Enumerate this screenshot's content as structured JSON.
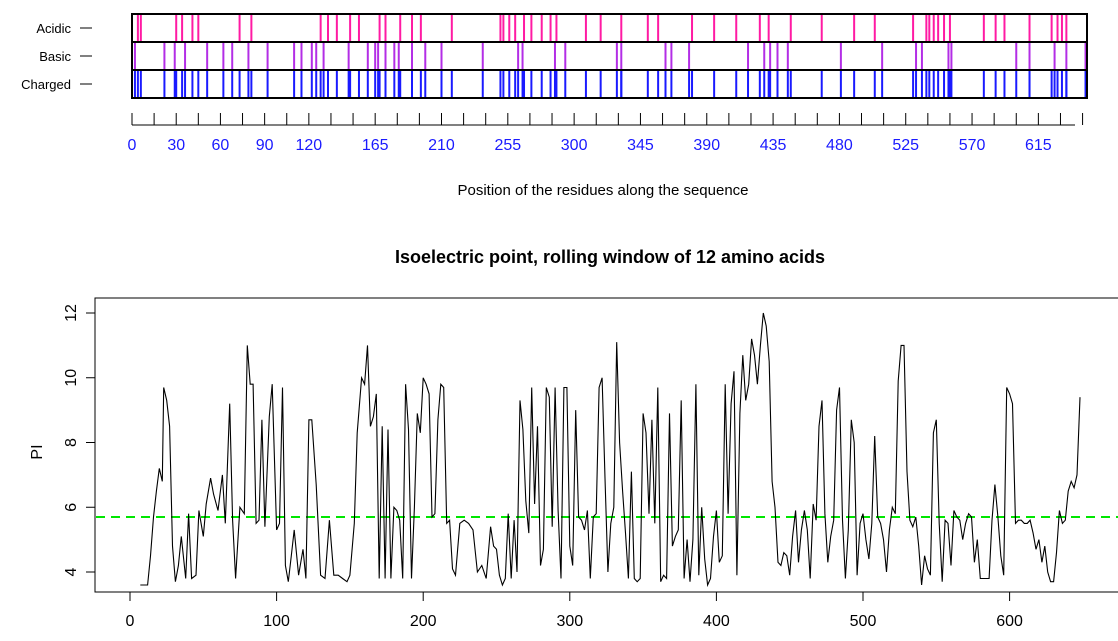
{
  "chart_data": [
    {
      "type": "barcode",
      "rows": [
        "Acidic",
        "Basic",
        "Charged"
      ],
      "xlabel": "Position of the residues along the sequence",
      "xticks": [
        0,
        30,
        60,
        90,
        120,
        165,
        210,
        255,
        300,
        345,
        390,
        435,
        480,
        525,
        570,
        615
      ],
      "xlim": [
        0,
        648
      ],
      "row_colors": {
        "Acidic": "#ff1aa3",
        "Basic": "#b32ee6",
        "Charged": "#1a1aff"
      },
      "acidic_positions": [
        4,
        6,
        30,
        34,
        41,
        45,
        73,
        81,
        128,
        133,
        139,
        148,
        154,
        168,
        172,
        182,
        190,
        196,
        217,
        250,
        252,
        256,
        260,
        266,
        271,
        278,
        284,
        288,
        308,
        318,
        332,
        350,
        357,
        380,
        395,
        410,
        426,
        432,
        447,
        468,
        490,
        504,
        530,
        539,
        541,
        544,
        547,
        551,
        555,
        578,
        586,
        592,
        609,
        624,
        628,
        631,
        634
      ],
      "basic_positions": [
        2,
        22,
        29,
        36,
        51,
        62,
        68,
        79,
        92,
        110,
        115,
        122,
        125,
        130,
        147,
        160,
        165,
        167,
        172,
        178,
        181,
        190,
        199,
        210,
        238,
        262,
        265,
        287,
        294,
        329,
        332,
        362,
        366,
        378,
        418,
        429,
        433,
        438,
        445,
        481,
        509,
        532,
        536,
        554,
        556,
        600,
        609,
        626,
        634,
        647
      ]
    },
    {
      "type": "line",
      "title": "Isoelectric point, rolling window of 12 amino acids",
      "xlabel": "",
      "ylabel": "PI",
      "xlim": [
        0,
        670
      ],
      "ylim": [
        3.5,
        12.2
      ],
      "xticks": [
        0,
        100,
        200,
        300,
        400,
        500,
        600
      ],
      "yticks": [
        4,
        6,
        8,
        10,
        12
      ],
      "reference_line": {
        "y": 5.7,
        "color": "#00e600",
        "style": "dashed"
      },
      "series": [
        {
          "color": "#000000",
          "x": [
            7,
            10,
            12,
            14,
            16,
            18,
            20,
            22,
            23,
            25,
            27,
            29,
            31,
            33,
            35,
            38,
            40,
            42,
            45,
            47,
            50,
            52,
            55,
            57,
            60,
            63,
            65,
            68,
            70,
            72,
            75,
            78,
            80,
            82,
            84,
            86,
            88,
            90,
            92,
            95,
            97,
            100,
            102,
            104,
            106,
            108,
            110,
            112,
            115,
            118,
            120,
            122,
            124,
            127,
            130,
            133,
            136,
            139,
            142,
            145,
            148,
            150,
            153,
            155,
            158,
            160,
            162,
            164,
            166,
            168,
            170,
            172,
            174,
            176,
            178,
            180,
            182,
            184,
            186,
            188,
            190,
            192,
            194,
            196,
            198,
            200,
            202,
            204,
            206,
            208,
            210,
            212,
            214,
            216,
            218,
            220,
            222,
            225,
            228,
            231,
            234,
            237,
            240,
            243,
            246,
            248,
            250,
            252,
            254,
            256,
            258,
            260,
            262,
            264,
            266,
            268,
            270,
            272,
            274,
            276,
            278,
            280,
            282,
            284,
            286,
            288,
            290,
            292,
            294,
            296,
            298,
            300,
            302,
            304,
            306,
            308,
            310,
            312,
            314,
            316,
            318,
            320,
            322,
            324,
            326,
            328,
            330,
            332,
            334,
            336,
            338,
            340,
            342,
            344,
            346,
            348,
            350,
            352,
            354,
            356,
            358,
            360,
            362,
            364,
            366,
            368,
            370,
            372,
            374,
            376,
            378,
            380,
            382,
            384,
            386,
            388,
            390,
            392,
            394,
            396,
            398,
            400,
            402,
            404,
            406,
            408,
            410,
            412,
            414,
            416,
            418,
            420,
            422,
            424,
            426,
            428,
            430,
            432,
            434,
            436,
            438,
            440,
            442,
            444,
            446,
            448,
            450,
            452,
            454,
            456,
            458,
            460,
            462,
            464,
            466,
            468,
            470,
            472,
            474,
            476,
            478,
            480,
            482,
            484,
            486,
            488,
            490,
            492,
            494,
            496,
            498,
            500,
            502,
            504,
            506,
            508,
            510,
            512,
            514,
            516,
            518,
            520,
            522,
            524,
            526,
            528,
            530,
            532,
            534,
            536,
            538,
            540,
            542,
            544,
            546,
            548,
            550,
            552,
            554,
            556,
            558,
            560,
            562,
            564,
            566,
            568,
            570,
            572,
            574,
            576,
            578,
            580,
            582,
            584,
            586,
            588,
            590,
            592,
            594,
            596,
            598,
            600,
            602,
            604,
            606,
            608,
            610,
            612,
            614,
            616,
            618,
            620,
            622,
            624,
            626,
            628,
            630,
            632,
            634,
            636,
            638,
            640,
            642,
            644,
            646,
            648
          ],
          "y": [
            3.6,
            3.6,
            3.6,
            4.5,
            5.7,
            6.5,
            7.2,
            6.8,
            9.7,
            9.3,
            8.5,
            4.8,
            3.7,
            4.2,
            5.1,
            3.8,
            5.8,
            3.8,
            3.9,
            5.9,
            5.1,
            6.1,
            6.9,
            6.4,
            5.9,
            7.0,
            5.5,
            9.2,
            5.6,
            3.8,
            6.0,
            5.8,
            11.0,
            9.8,
            9.8,
            5.5,
            5.6,
            8.7,
            5.4,
            8.8,
            9.8,
            5.3,
            5.5,
            9.7,
            4.2,
            3.7,
            4.5,
            5.3,
            3.9,
            4.7,
            3.8,
            8.7,
            8.7,
            6.7,
            3.9,
            3.8,
            5.6,
            3.9,
            3.9,
            3.8,
            3.7,
            3.9,
            5.5,
            8.3,
            10.0,
            9.8,
            11.0,
            8.5,
            8.8,
            9.5,
            3.8,
            8.5,
            3.8,
            8.4,
            3.8,
            6.0,
            5.9,
            5.6,
            3.8,
            9.8,
            8.4,
            3.8,
            6.0,
            8.9,
            8.3,
            10.0,
            9.8,
            9.5,
            5.7,
            5.8,
            8.7,
            9.8,
            9.7,
            5.5,
            5.6,
            4.1,
            3.9,
            5.5,
            5.6,
            5.5,
            5.3,
            4.0,
            4.2,
            3.8,
            5.4,
            4.8,
            4.7,
            3.9,
            3.6,
            3.8,
            5.8,
            3.8,
            5.6,
            4.0,
            9.3,
            8.4,
            6.2,
            5.2,
            9.7,
            6.1,
            8.5,
            4.2,
            4.7,
            9.7,
            9.4,
            5.4,
            9.7,
            5.9,
            3.8,
            9.7,
            9.7,
            4.8,
            4.2,
            9.0,
            5.7,
            5.6,
            5.3,
            5.9,
            3.8,
            5.7,
            5.8,
            9.7,
            10.0,
            6.9,
            4.0,
            5.5,
            6.0,
            11.1,
            8.0,
            6.5,
            5.2,
            3.8,
            7.1,
            3.8,
            3.7,
            3.8,
            8.9,
            8.3,
            5.8,
            8.7,
            5.5,
            9.7,
            3.7,
            3.9,
            3.8,
            8.9,
            4.8,
            5.1,
            5.3,
            9.3,
            3.8,
            5.0,
            3.7,
            5.0,
            9.8,
            3.9,
            6.0,
            4.4,
            3.6,
            3.8,
            5.1,
            5.9,
            4.3,
            4.5,
            9.8,
            5.8,
            9.2,
            10.2,
            3.9,
            8.9,
            10.7,
            9.3,
            9.8,
            11.2,
            10.7,
            9.8,
            11.0,
            12.0,
            11.6,
            10.5,
            6.8,
            6.0,
            4.3,
            4.2,
            4.6,
            4.5,
            3.9,
            5.1,
            5.9,
            4.3,
            5.3,
            5.9,
            5.3,
            3.8,
            6.1,
            5.6,
            8.5,
            9.3,
            5.8,
            4.3,
            5.1,
            5.6,
            9.0,
            9.7,
            5.6,
            3.8,
            5.3,
            8.7,
            8.0,
            3.9,
            5.5,
            5.8,
            5.0,
            4.4,
            5.5,
            8.2,
            5.7,
            5.5,
            5.0,
            4.0,
            5.3,
            6.0,
            5.8,
            9.9,
            11.0,
            11.0,
            7.1,
            5.6,
            5.4,
            5.7,
            4.8,
            3.6,
            4.5,
            4.1,
            3.9,
            8.3,
            8.7,
            5.5,
            3.7,
            5.6,
            5.5,
            4.2,
            5.9,
            5.7,
            5.6,
            5.0,
            5.5,
            5.8,
            5.7,
            4.3,
            5.0,
            3.8,
            3.8,
            3.8,
            3.8,
            5.6,
            6.7,
            5.7,
            4.5,
            3.9,
            9.7,
            9.5,
            9.2,
            5.5,
            5.6,
            5.6,
            5.5,
            5.5,
            5.6,
            5.2,
            4.7,
            5.0,
            4.3,
            4.8,
            4.0,
            3.7,
            3.7,
            4.6,
            5.9,
            5.5,
            5.6,
            6.5,
            6.8,
            6.6,
            7.0,
            9.4
          ]
        }
      ]
    }
  ]
}
